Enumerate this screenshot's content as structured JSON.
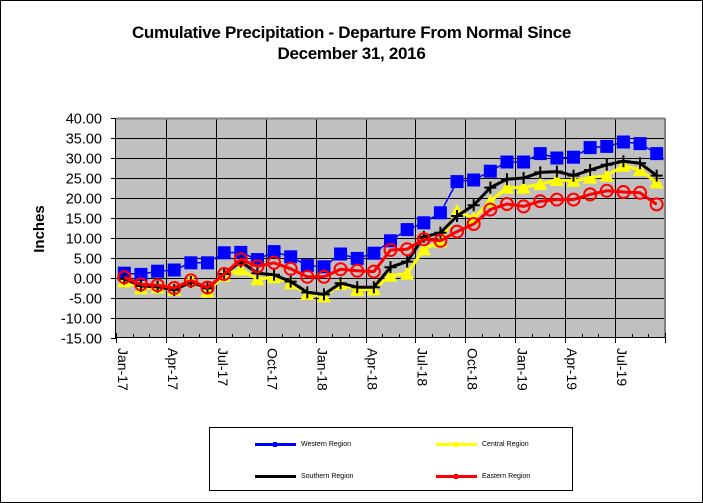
{
  "chart_data": {
    "type": "line",
    "title": "Cumulative Precipitation - Departure From Normal Since December 31, 2016",
    "title_lines": [
      "Cumulative Precipitation - Departure From Normal Since",
      "December 31, 2016"
    ],
    "xlabel": "",
    "ylabel": "Inches",
    "ylim": [
      -15,
      40
    ],
    "yticks": [
      40,
      35,
      30,
      25,
      20,
      15,
      10,
      5,
      0,
      -5,
      -10,
      -15
    ],
    "ytick_labels": [
      "40.00",
      "35.00",
      "30.00",
      "25.00",
      "20.00",
      "15.00",
      "10.00",
      "5.00",
      "0.00",
      "-5.00",
      "-10.00",
      "-15.00"
    ],
    "x_months_range": [
      0,
      33
    ],
    "xtick_labels": [
      "Jan-17",
      "Apr-17",
      "Jul-17",
      "Oct-17",
      "Jan-18",
      "Apr-18",
      "Jul-18",
      "Oct-18",
      "Jan-19",
      "Apr-19",
      "Jul-19"
    ],
    "grid": true,
    "legend_position": "bottom",
    "x": [
      "Jan-17",
      "Feb-17",
      "Mar-17",
      "Apr-17",
      "May-17",
      "Jun-17",
      "Jul-17",
      "Aug-17",
      "Sep-17",
      "Oct-17",
      "Nov-17",
      "Dec-17",
      "Jan-18",
      "Feb-18",
      "Mar-18",
      "Apr-18",
      "May-18",
      "Jun-18",
      "Jul-18",
      "Aug-18",
      "Sep-18",
      "Oct-18",
      "Nov-18",
      "Dec-18",
      "Jan-19",
      "Feb-19",
      "Mar-19",
      "Apr-19",
      "May-19",
      "Jun-19",
      "Jul-19",
      "Aug-19",
      "Sep-19"
    ],
    "series": [
      {
        "name": "Western Region",
        "color": "#0000ff",
        "marker": "square",
        "values": [
          1.2,
          0.9,
          1.7,
          2.0,
          3.8,
          3.8,
          6.3,
          6.4,
          4.6,
          6.6,
          5.3,
          3.1,
          2.8,
          6.0,
          4.9,
          6.2,
          9.3,
          12.1,
          13.8,
          16.3,
          24.1,
          24.5,
          26.7,
          29.0,
          29.0,
          31.1,
          30.0,
          30.2,
          32.6,
          32.9,
          34.0,
          33.6,
          31.1
        ]
      },
      {
        "name": "Central Region",
        "color": "#ffff00",
        "marker": "triangle",
        "values": [
          -0.8,
          -2.6,
          -2.4,
          -3.0,
          -0.4,
          -3.4,
          0.6,
          2.2,
          -0.3,
          0.2,
          -1.3,
          -4.0,
          -4.6,
          -1.5,
          -3.0,
          -2.8,
          0.6,
          1.1,
          7.2,
          9.1,
          16.8,
          14.9,
          19.2,
          22.6,
          22.6,
          23.5,
          24.5,
          24.3,
          25.1,
          25.6,
          28.1,
          27.0,
          23.9
        ]
      },
      {
        "name": "Southern Region",
        "color": "#000000",
        "marker": "plus",
        "values": [
          -0.2,
          -2.0,
          -2.2,
          -3.0,
          -1.0,
          -2.6,
          1.0,
          4.1,
          1.2,
          0.8,
          -0.9,
          -3.6,
          -4.1,
          -1.3,
          -2.3,
          -2.3,
          2.7,
          4.1,
          10.3,
          11.3,
          15.5,
          18.2,
          22.6,
          24.7,
          25.0,
          26.4,
          26.6,
          25.6,
          27.0,
          28.3,
          29.2,
          28.7,
          25.6
        ]
      },
      {
        "name": "Eastern Region",
        "color": "#ff0000",
        "marker": "circle",
        "values": [
          0.2,
          -1.6,
          -1.8,
          -2.5,
          -0.6,
          -2.4,
          1.0,
          4.7,
          2.9,
          3.8,
          2.3,
          0.3,
          0.3,
          2.2,
          1.8,
          1.6,
          7.0,
          7.2,
          9.7,
          9.3,
          11.6,
          13.5,
          17.1,
          18.5,
          17.9,
          19.2,
          19.6,
          19.6,
          20.9,
          21.8,
          21.5,
          21.3,
          18.4
        ]
      }
    ]
  },
  "legend": {
    "items": [
      {
        "label": "Western Region",
        "color": "#0000ff"
      },
      {
        "label": "Central Region",
        "color": "#ffff00"
      },
      {
        "label": "Southern Region",
        "color": "#000000"
      },
      {
        "label": "Eastern Region",
        "color": "#ff0000"
      }
    ]
  },
  "style": {
    "plot_background": "#c0c0c0",
    "gridline_color": "#000000",
    "plot_border": "#808080"
  }
}
